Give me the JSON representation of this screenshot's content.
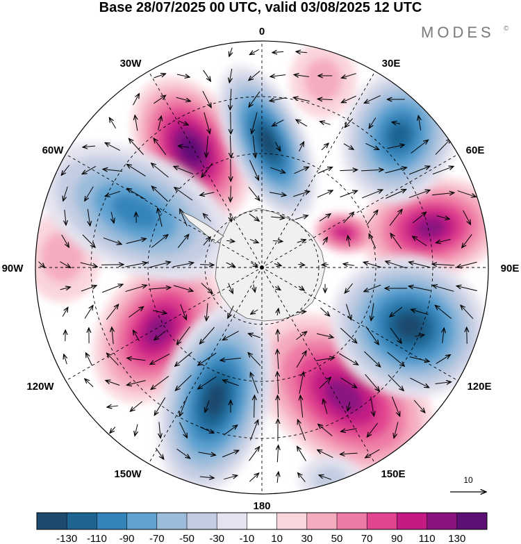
{
  "title": "Base 28/07/2025 00 UTC, valid 03/08/2025 12 UTC",
  "brand": "MODES",
  "brand_mark": "©",
  "longitude_labels": {
    "top": "0",
    "e30": "30E",
    "e60": "60E",
    "e90": "90E",
    "e120": "120E",
    "e150": "150E",
    "bottom": "180",
    "w150": "150W",
    "w120": "120W",
    "w90": "90W",
    "w60": "60W",
    "w30": "30W"
  },
  "vector_scale_label": "10",
  "colorbar": {
    "colors": [
      "#1d4a6d",
      "#1f6593",
      "#3585bc",
      "#5fa2d0",
      "#9bbcdb",
      "#c3cde2",
      "#e4e3ef",
      "#ffffff",
      "#fad5dc",
      "#f5acbf",
      "#ee7ba6",
      "#e2458f",
      "#c41a84",
      "#8a1281",
      "#5c0f74"
    ],
    "tick_labels": [
      "-130",
      "-110",
      "-90",
      "-70",
      "-50",
      "-30",
      "-10",
      "10",
      "30",
      "50",
      "70",
      "90",
      "110",
      "130"
    ]
  },
  "colors": {
    "land": "#f0f0f0",
    "outline": "#333333"
  }
}
